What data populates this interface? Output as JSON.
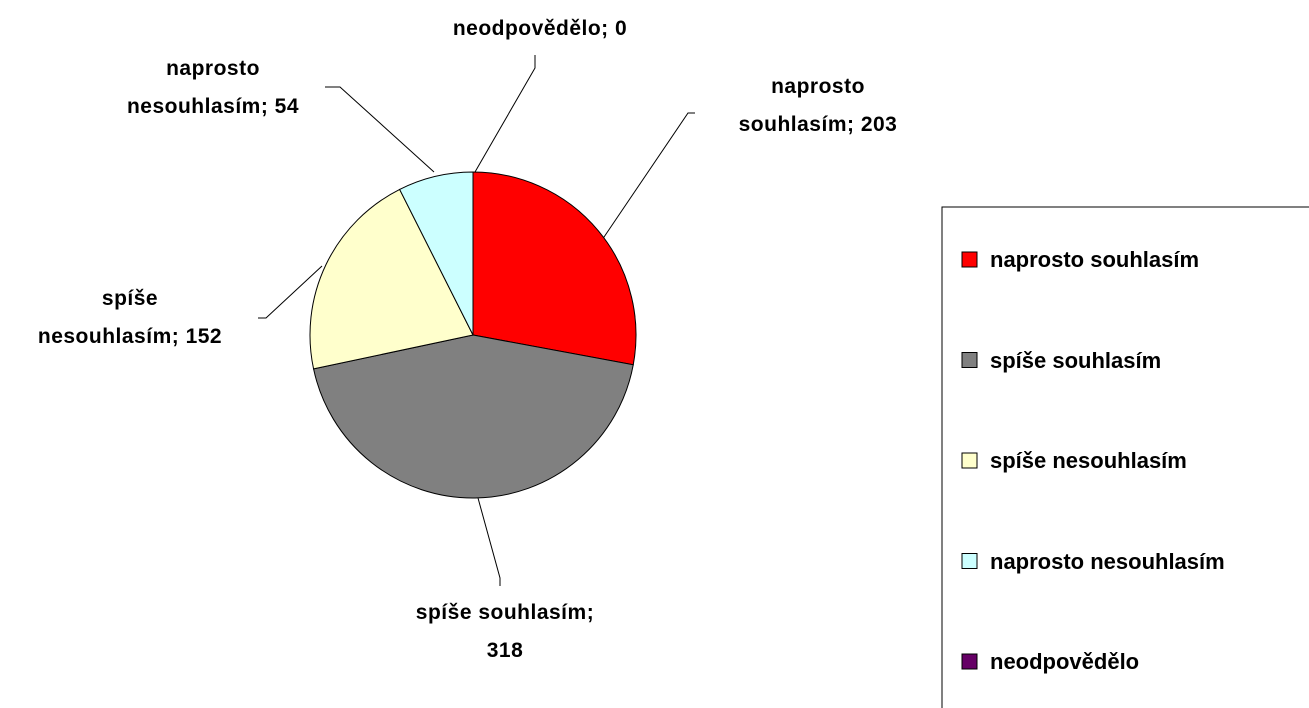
{
  "chart_data": {
    "type": "pie",
    "categories": [
      "naprosto souhlasím",
      "spíše souhlasím",
      "spíše nesouhlasím",
      "naprosto nesouhlasím",
      "neodpovědělo"
    ],
    "values": [
      203,
      318,
      152,
      54,
      0
    ],
    "value_labels": [
      "naprosto souhlasím; 203",
      "spíše souhlasím; 318",
      "spíše nesouhlasím; 152",
      "naprosto nesouhlasím; 54",
      "neodpovědělo; 0"
    ],
    "colors": [
      "#ff0000",
      "#808080",
      "#ffffcc",
      "#ccffff",
      "#660066"
    ],
    "legend": "right"
  }
}
